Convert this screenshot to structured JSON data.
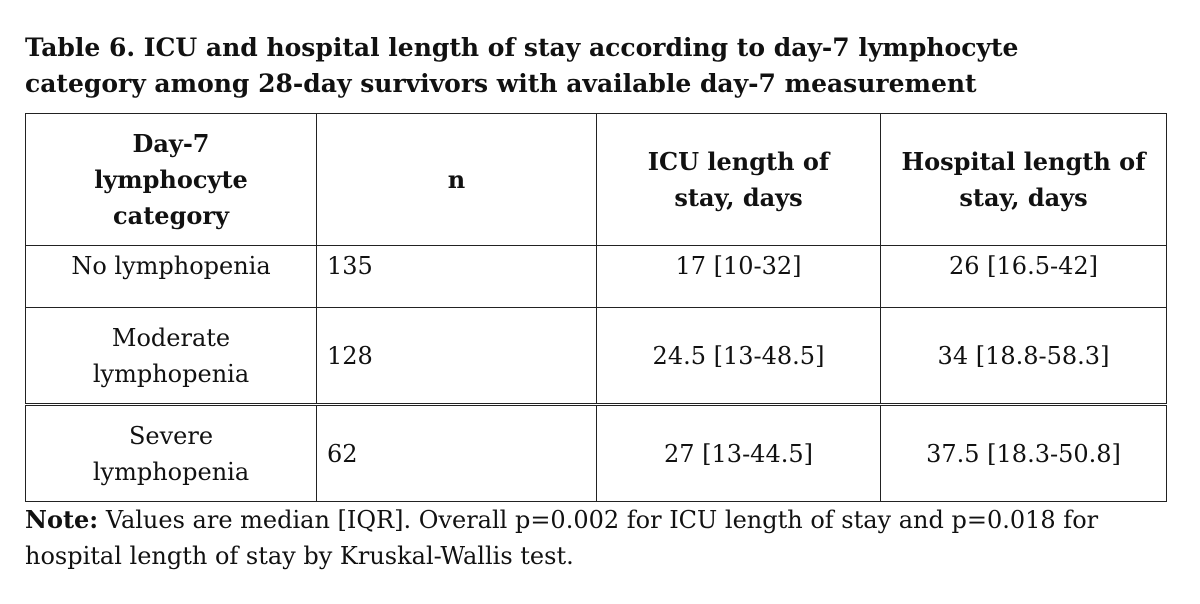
{
  "title": [
    "Table 6. ICU and hospital length of stay according to day-7 lymphocyte",
    "category among 28-day survivors with available day-7 measurement"
  ],
  "table": {
    "header": [
      "Day-7 lymphocyte category",
      "n",
      "ICU length of stay, days",
      "Hospital length of stay, days"
    ],
    "rows": [
      [
        "No lymphopenia",
        "135",
        "17 [10-32]",
        "26 [16.5-42]"
      ],
      [
        "Moderate lymphopenia",
        "128",
        "24.5 [13-48.5]",
        "34 [18.8-58.3]"
      ],
      [
        "Severe lymphopenia",
        "62",
        "27 [13-44.5]",
        "37.5 [18.3-50.8]"
      ]
    ]
  },
  "note": {
    "label": "Note:",
    "text": "Values are median [IQR]. Overall p=0.002 for ICU length of stay and p=0.018 for hospital length of stay by Kruskal-Wallis test."
  }
}
